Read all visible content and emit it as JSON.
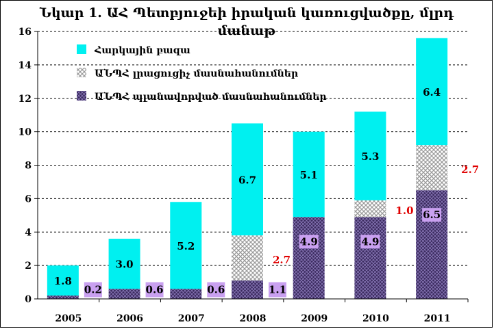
{
  "chart_data": {
    "type": "bar",
    "stacked": true,
    "title": "Նկար 1. ԱՀ Պետբյուջեի իրական կառուցվածքը, մլրդ մանաթ",
    "categories": [
      "2005",
      "2006",
      "2007",
      "2008",
      "2009",
      "2010",
      "2011"
    ],
    "ylim": [
      0,
      16
    ],
    "yticks": [
      0,
      2,
      4,
      6,
      8,
      10,
      12,
      14,
      16
    ],
    "grid": "horizontal dashed",
    "legend_position": "top-left",
    "series": [
      {
        "name": "ԱՆՊՀ պլանավորված մասնահանումներ",
        "values": [
          0.2,
          0.6,
          0.6,
          1.1,
          4.9,
          4.9,
          6.5
        ],
        "labels": [
          "0.2",
          "0.6",
          "0.6",
          "1.1",
          "4.9",
          "4.9",
          "6.5"
        ],
        "color": "#3a2a5e",
        "label_color": "#c9a0f0"
      },
      {
        "name": "ԱՆՊՀ լրացուցիչ մասնահանումներ",
        "values": [
          0,
          0,
          0,
          2.7,
          0,
          1.0,
          2.7
        ],
        "labels": [
          "",
          "",
          "",
          "2.7",
          "",
          "1.0",
          "2.7"
        ],
        "color": "#b8b8b8",
        "label_color": "#e00000"
      },
      {
        "name": "Հարկային բազա",
        "values": [
          1.8,
          3.0,
          5.2,
          6.7,
          5.1,
          5.3,
          6.4
        ],
        "labels": [
          "1.8",
          "3.0",
          "5.2",
          "6.7",
          "5.1",
          "5.3",
          "6.4"
        ],
        "color": "#00f0f0",
        "label_color": "#000000"
      }
    ]
  }
}
